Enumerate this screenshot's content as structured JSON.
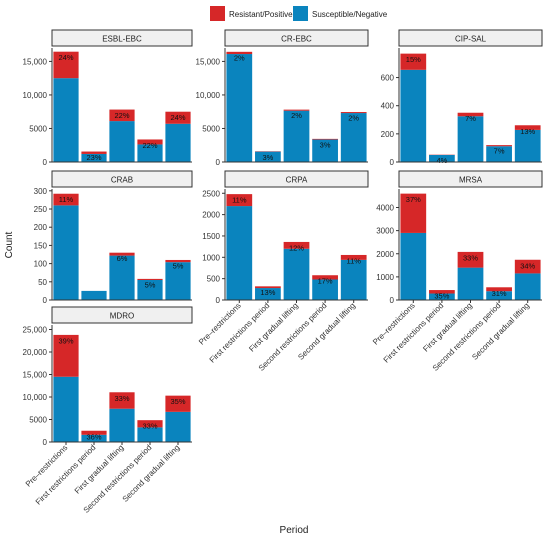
{
  "legend": {
    "items": [
      {
        "label": "Resistant/Positive",
        "color": "#d62728"
      },
      {
        "label": "Susceptible/Negative",
        "color": "#0a84be"
      }
    ]
  },
  "axis_labels": {
    "x": "Period",
    "y": "Count"
  },
  "chart_data": {
    "type": "bar",
    "stacked": true,
    "categories": [
      "Pre–restrictions",
      "First restrictions period",
      "First gradual lifting",
      "Second restrictions period",
      "Second gradual lifting"
    ],
    "facets": [
      {
        "title": "ESBL-EBC",
        "ylim": [
          0,
          17000
        ],
        "yticks": [
          0,
          5000,
          10000,
          15000
        ],
        "ytick_labels": [
          "0",
          "5000",
          "10,000",
          "15,000"
        ],
        "susceptible": [
          12500,
          1200,
          6100,
          2620,
          5700
        ],
        "resistant": [
          3950,
          360,
          1720,
          740,
          1800
        ],
        "pct_labels": [
          "24%",
          "23%",
          "22%",
          "22%",
          "24%"
        ]
      },
      {
        "title": "CR-EBC",
        "ylim": [
          0,
          17000
        ],
        "yticks": [
          0,
          5000,
          10000,
          15000
        ],
        "ytick_labels": [
          "0",
          "5000",
          "10,000",
          "15,000"
        ],
        "susceptible": [
          16100,
          1550,
          7650,
          3350,
          7300
        ],
        "resistant": [
          330,
          50,
          160,
          100,
          150
        ],
        "pct_labels": [
          "2%",
          "3%",
          "2%",
          "3%",
          "2%"
        ]
      },
      {
        "title": "CIP-SAL",
        "ylim": [
          0,
          810
        ],
        "yticks": [
          0,
          200,
          400,
          600
        ],
        "ytick_labels": [
          "0",
          "200",
          "400",
          "600"
        ],
        "susceptible": [
          655,
          50,
          325,
          112,
          228
        ],
        "resistant": [
          115,
          2,
          25,
          8,
          33
        ],
        "pct_labels": [
          "15%",
          "4%",
          "7%",
          "7%",
          "13%"
        ]
      },
      {
        "title": "CRAB",
        "ylim": [
          0,
          305
        ],
        "yticks": [
          0,
          50,
          100,
          150,
          200,
          250,
          300
        ],
        "ytick_labels": [
          "0",
          "50",
          "100",
          "150",
          "200",
          "250",
          "300"
        ],
        "susceptible": [
          260,
          25,
          122,
          55,
          104
        ],
        "resistant": [
          32,
          0,
          8,
          3,
          6
        ],
        "pct_labels": [
          "11%",
          "",
          "6%",
          "5%",
          "5%"
        ]
      },
      {
        "title": "CRPA",
        "ylim": [
          0,
          2600
        ],
        "yticks": [
          0,
          500,
          1000,
          1500,
          2000,
          2500
        ],
        "ytick_labels": [
          "0",
          "500",
          "1000",
          "1500",
          "2000",
          "2500"
        ],
        "susceptible": [
          2200,
          280,
          1200,
          480,
          940
        ],
        "resistant": [
          280,
          40,
          160,
          100,
          115
        ],
        "pct_labels": [
          "11%",
          "13%",
          "12%",
          "17%",
          "11%"
        ]
      },
      {
        "title": "MRSA",
        "ylim": [
          0,
          4800
        ],
        "yticks": [
          0,
          1000,
          2000,
          3000,
          4000
        ],
        "ytick_labels": [
          "0",
          "1000",
          "2000",
          "3000",
          "4000"
        ],
        "susceptible": [
          2900,
          280,
          1400,
          380,
          1150
        ],
        "resistant": [
          1700,
          150,
          680,
          170,
          590
        ],
        "pct_labels": [
          "37%",
          "35%",
          "33%",
          "31%",
          "34%"
        ]
      },
      {
        "title": "MDRO",
        "ylim": [
          0,
          26000
        ],
        "yticks": [
          0,
          5000,
          10000,
          15000,
          20000,
          25000
        ],
        "ytick_labels": [
          "0",
          "5000",
          "10,000",
          "15,000",
          "20,000",
          "25,000"
        ],
        "susceptible": [
          14500,
          1600,
          7400,
          3250,
          6700
        ],
        "resistant": [
          9300,
          900,
          3650,
          1600,
          3600
        ],
        "pct_labels": [
          "39%",
          "36%",
          "33%",
          "33%",
          "35%"
        ]
      }
    ]
  }
}
